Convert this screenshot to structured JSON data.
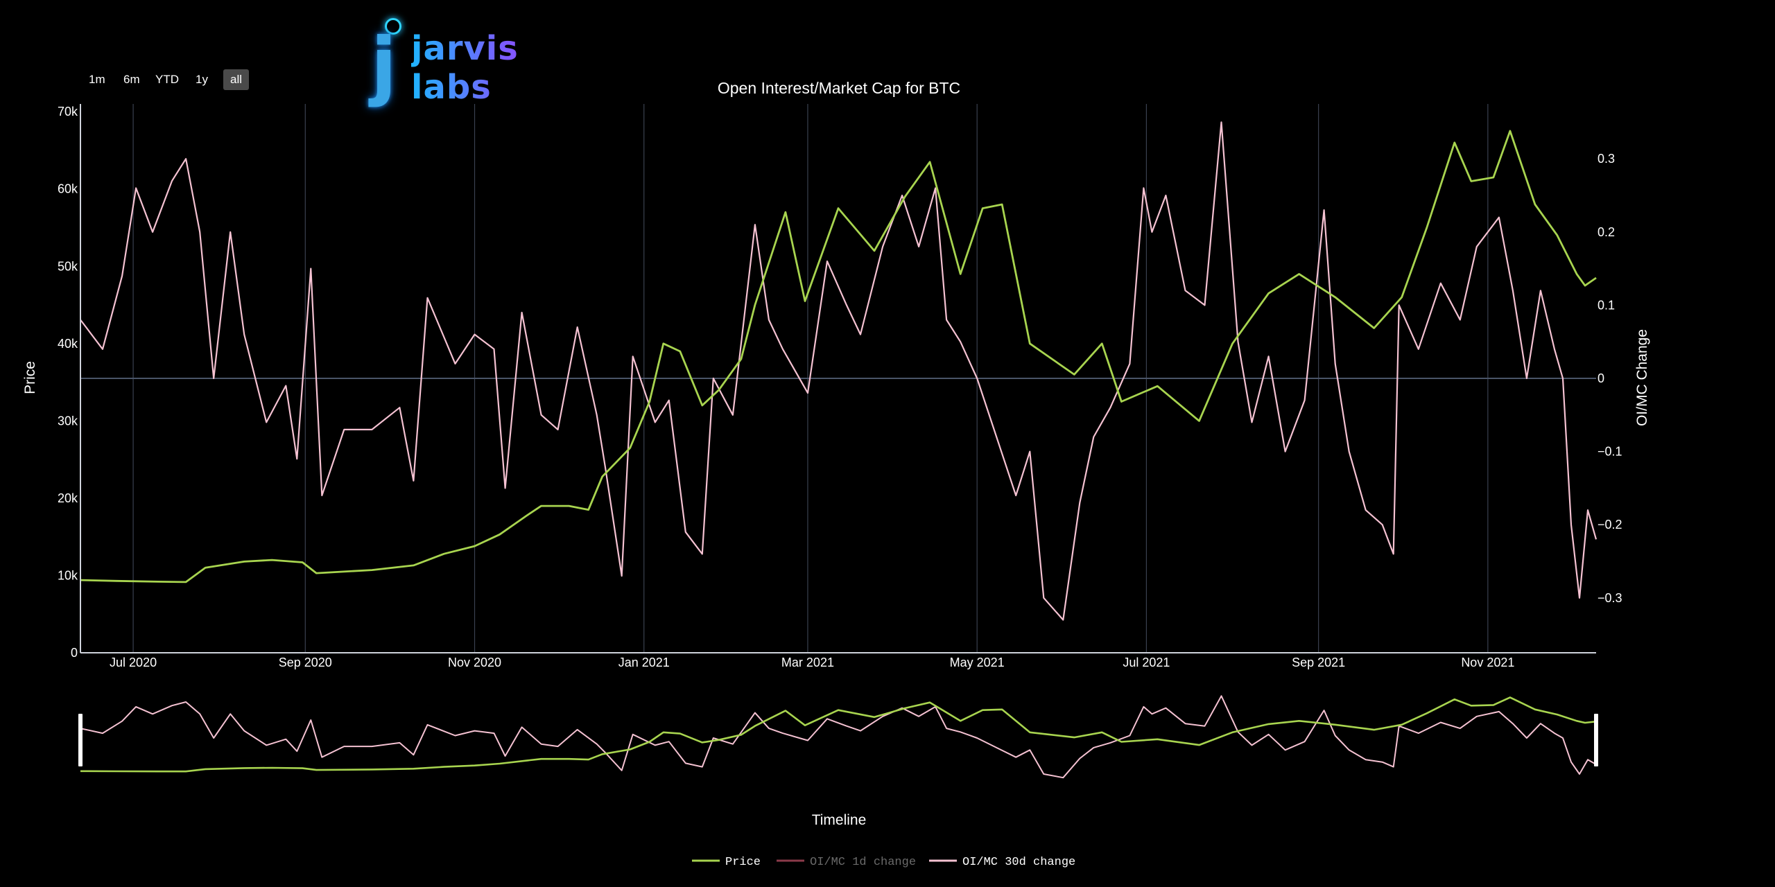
{
  "brand": {
    "logo_text": "jarvis labs",
    "logo_letter": "j"
  },
  "range_selector": {
    "buttons": [
      {
        "label": "1m",
        "active": false
      },
      {
        "label": "6m",
        "active": false
      },
      {
        "label": "YTD",
        "active": false
      },
      {
        "label": "1y",
        "active": false
      },
      {
        "label": "all",
        "active": true
      }
    ]
  },
  "colors": {
    "price": "#a8d44f",
    "oi_1d": "#8b3a4a",
    "oi_30d": "#f5c2d2",
    "grid": "#3a4150",
    "axis": "#cfd3dc",
    "zero_line": "#4a5468"
  },
  "chart_data": {
    "type": "line",
    "title": "Open Interest/Market Cap for BTC",
    "xlabel": "Timeline",
    "ylabel": "Price",
    "y2label": "OI/MC Change",
    "xlim": [
      "2020-06-12",
      "2021-12-10"
    ],
    "ylim": [
      0,
      71000
    ],
    "y2lim": [
      -0.375,
      0.375
    ],
    "x_ticks": [
      "Jul 2020",
      "Sep 2020",
      "Nov 2020",
      "Jan 2021",
      "Mar 2021",
      "May 2021",
      "Jul 2021",
      "Sep 2021",
      "Nov 2021"
    ],
    "x_tick_dates": [
      "2020-07-01",
      "2020-09-01",
      "2020-11-01",
      "2021-01-01",
      "2021-03-01",
      "2021-05-01",
      "2021-07-01",
      "2021-09-01",
      "2021-11-01"
    ],
    "y_ticks": [
      "0",
      "10k",
      "20k",
      "30k",
      "40k",
      "50k",
      "60k",
      "70k"
    ],
    "y_tick_values": [
      0,
      10000,
      20000,
      30000,
      40000,
      50000,
      60000,
      70000
    ],
    "y2_ticks": [
      "0.3",
      "0.2",
      "0.1",
      "0",
      "−0.1",
      "−0.2",
      "−0.3"
    ],
    "y2_tick_values": [
      0.3,
      0.2,
      0.1,
      0,
      -0.1,
      -0.2,
      -0.3
    ],
    "grid": true,
    "legend_position": "bottom",
    "series": [
      {
        "name": "Price",
        "axis": "y",
        "points": [
          [
            "2020-06-12",
            9400
          ],
          [
            "2020-06-25",
            9300
          ],
          [
            "2020-07-10",
            9200
          ],
          [
            "2020-07-20",
            9150
          ],
          [
            "2020-07-27",
            11000
          ],
          [
            "2020-08-10",
            11800
          ],
          [
            "2020-08-20",
            12000
          ],
          [
            "2020-08-31",
            11700
          ],
          [
            "2020-09-05",
            10300
          ],
          [
            "2020-09-25",
            10700
          ],
          [
            "2020-10-10",
            11300
          ],
          [
            "2020-10-21",
            12800
          ],
          [
            "2020-11-01",
            13800
          ],
          [
            "2020-11-10",
            15300
          ],
          [
            "2020-11-20",
            17800
          ],
          [
            "2020-11-25",
            19000
          ],
          [
            "2020-12-05",
            19000
          ],
          [
            "2020-12-12",
            18500
          ],
          [
            "2020-12-17",
            22800
          ],
          [
            "2020-12-27",
            26500
          ],
          [
            "2021-01-03",
            32500
          ],
          [
            "2021-01-08",
            40000
          ],
          [
            "2021-01-14",
            39000
          ],
          [
            "2021-01-22",
            32000
          ],
          [
            "2021-01-28",
            34000
          ],
          [
            "2021-02-05",
            38000
          ],
          [
            "2021-02-10",
            45000
          ],
          [
            "2021-02-21",
            57000
          ],
          [
            "2021-02-28",
            45500
          ],
          [
            "2021-03-12",
            57500
          ],
          [
            "2021-03-25",
            52000
          ],
          [
            "2021-04-05",
            59000
          ],
          [
            "2021-04-14",
            63500
          ],
          [
            "2021-04-25",
            49000
          ],
          [
            "2021-05-03",
            57500
          ],
          [
            "2021-05-10",
            58000
          ],
          [
            "2021-05-20",
            40000
          ],
          [
            "2021-06-05",
            36000
          ],
          [
            "2021-06-15",
            40000
          ],
          [
            "2021-06-22",
            32500
          ],
          [
            "2021-07-05",
            34500
          ],
          [
            "2021-07-20",
            30000
          ],
          [
            "2021-08-01",
            40000
          ],
          [
            "2021-08-14",
            46500
          ],
          [
            "2021-08-25",
            49000
          ],
          [
            "2021-09-07",
            46000
          ],
          [
            "2021-09-21",
            42000
          ],
          [
            "2021-10-01",
            46000
          ],
          [
            "2021-10-10",
            55000
          ],
          [
            "2021-10-20",
            66000
          ],
          [
            "2021-10-26",
            61000
          ],
          [
            "2021-11-03",
            61500
          ],
          [
            "2021-11-09",
            67500
          ],
          [
            "2021-11-18",
            58000
          ],
          [
            "2021-11-26",
            54000
          ],
          [
            "2021-12-03",
            49000
          ],
          [
            "2021-12-06",
            47500
          ],
          [
            "2021-12-10",
            48500
          ]
        ]
      },
      {
        "name": "OI/MC 1d change",
        "axis": "y2",
        "hidden": true,
        "points": []
      },
      {
        "name": "OI/MC 30d change",
        "axis": "y2",
        "points": [
          [
            "2020-06-12",
            0.08
          ],
          [
            "2020-06-20",
            0.04
          ],
          [
            "2020-06-27",
            0.14
          ],
          [
            "2020-07-02",
            0.26
          ],
          [
            "2020-07-08",
            0.2
          ],
          [
            "2020-07-15",
            0.27
          ],
          [
            "2020-07-20",
            0.3
          ],
          [
            "2020-07-25",
            0.2
          ],
          [
            "2020-07-30",
            0.0
          ],
          [
            "2020-08-05",
            0.2
          ],
          [
            "2020-08-10",
            0.06
          ],
          [
            "2020-08-18",
            -0.06
          ],
          [
            "2020-08-25",
            -0.01
          ],
          [
            "2020-08-29",
            -0.11
          ],
          [
            "2020-09-03",
            0.15
          ],
          [
            "2020-09-07",
            -0.16
          ],
          [
            "2020-09-15",
            -0.07
          ],
          [
            "2020-09-25",
            -0.07
          ],
          [
            "2020-10-05",
            -0.04
          ],
          [
            "2020-10-10",
            -0.14
          ],
          [
            "2020-10-15",
            0.11
          ],
          [
            "2020-10-25",
            0.02
          ],
          [
            "2020-11-01",
            0.06
          ],
          [
            "2020-11-08",
            0.04
          ],
          [
            "2020-11-12",
            -0.15
          ],
          [
            "2020-11-18",
            0.09
          ],
          [
            "2020-11-25",
            -0.05
          ],
          [
            "2020-12-01",
            -0.07
          ],
          [
            "2020-12-08",
            0.07
          ],
          [
            "2020-12-15",
            -0.05
          ],
          [
            "2020-12-18",
            -0.12
          ],
          [
            "2020-12-24",
            -0.27
          ],
          [
            "2020-12-28",
            0.03
          ],
          [
            "2021-01-05",
            -0.06
          ],
          [
            "2021-01-10",
            -0.03
          ],
          [
            "2021-01-16",
            -0.21
          ],
          [
            "2021-01-22",
            -0.24
          ],
          [
            "2021-01-26",
            0.0
          ],
          [
            "2021-02-02",
            -0.05
          ],
          [
            "2021-02-10",
            0.21
          ],
          [
            "2021-02-15",
            0.08
          ],
          [
            "2021-02-20",
            0.04
          ],
          [
            "2021-03-01",
            -0.02
          ],
          [
            "2021-03-08",
            0.16
          ],
          [
            "2021-03-15",
            0.1
          ],
          [
            "2021-03-20",
            0.06
          ],
          [
            "2021-03-28",
            0.18
          ],
          [
            "2021-04-04",
            0.25
          ],
          [
            "2021-04-10",
            0.18
          ],
          [
            "2021-04-16",
            0.26
          ],
          [
            "2021-04-20",
            0.08
          ],
          [
            "2021-04-25",
            0.05
          ],
          [
            "2021-05-01",
            0.0
          ],
          [
            "2021-05-08",
            -0.08
          ],
          [
            "2021-05-15",
            -0.16
          ],
          [
            "2021-05-20",
            -0.1
          ],
          [
            "2021-05-25",
            -0.3
          ],
          [
            "2021-06-01",
            -0.33
          ],
          [
            "2021-06-07",
            -0.17
          ],
          [
            "2021-06-12",
            -0.08
          ],
          [
            "2021-06-18",
            -0.04
          ],
          [
            "2021-06-25",
            0.02
          ],
          [
            "2021-06-30",
            0.26
          ],
          [
            "2021-07-03",
            0.2
          ],
          [
            "2021-07-08",
            0.25
          ],
          [
            "2021-07-15",
            0.12
          ],
          [
            "2021-07-22",
            0.1
          ],
          [
            "2021-07-28",
            0.35
          ],
          [
            "2021-08-03",
            0.05
          ],
          [
            "2021-08-08",
            -0.06
          ],
          [
            "2021-08-14",
            0.03
          ],
          [
            "2021-08-20",
            -0.1
          ],
          [
            "2021-08-27",
            -0.03
          ],
          [
            "2021-09-03",
            0.23
          ],
          [
            "2021-09-07",
            0.02
          ],
          [
            "2021-09-12",
            -0.1
          ],
          [
            "2021-09-18",
            -0.18
          ],
          [
            "2021-09-24",
            -0.2
          ],
          [
            "2021-09-28",
            -0.24
          ],
          [
            "2021-09-30",
            0.1
          ],
          [
            "2021-10-07",
            0.04
          ],
          [
            "2021-10-15",
            0.13
          ],
          [
            "2021-10-22",
            0.08
          ],
          [
            "2021-10-28",
            0.18
          ],
          [
            "2021-11-05",
            0.22
          ],
          [
            "2021-11-10",
            0.12
          ],
          [
            "2021-11-15",
            0.0
          ],
          [
            "2021-11-20",
            0.12
          ],
          [
            "2021-11-25",
            0.04
          ],
          [
            "2021-11-28",
            0.0
          ],
          [
            "2021-12-01",
            -0.2
          ],
          [
            "2021-12-04",
            -0.3
          ],
          [
            "2021-12-07",
            -0.18
          ],
          [
            "2021-12-10",
            -0.22
          ]
        ]
      }
    ]
  }
}
